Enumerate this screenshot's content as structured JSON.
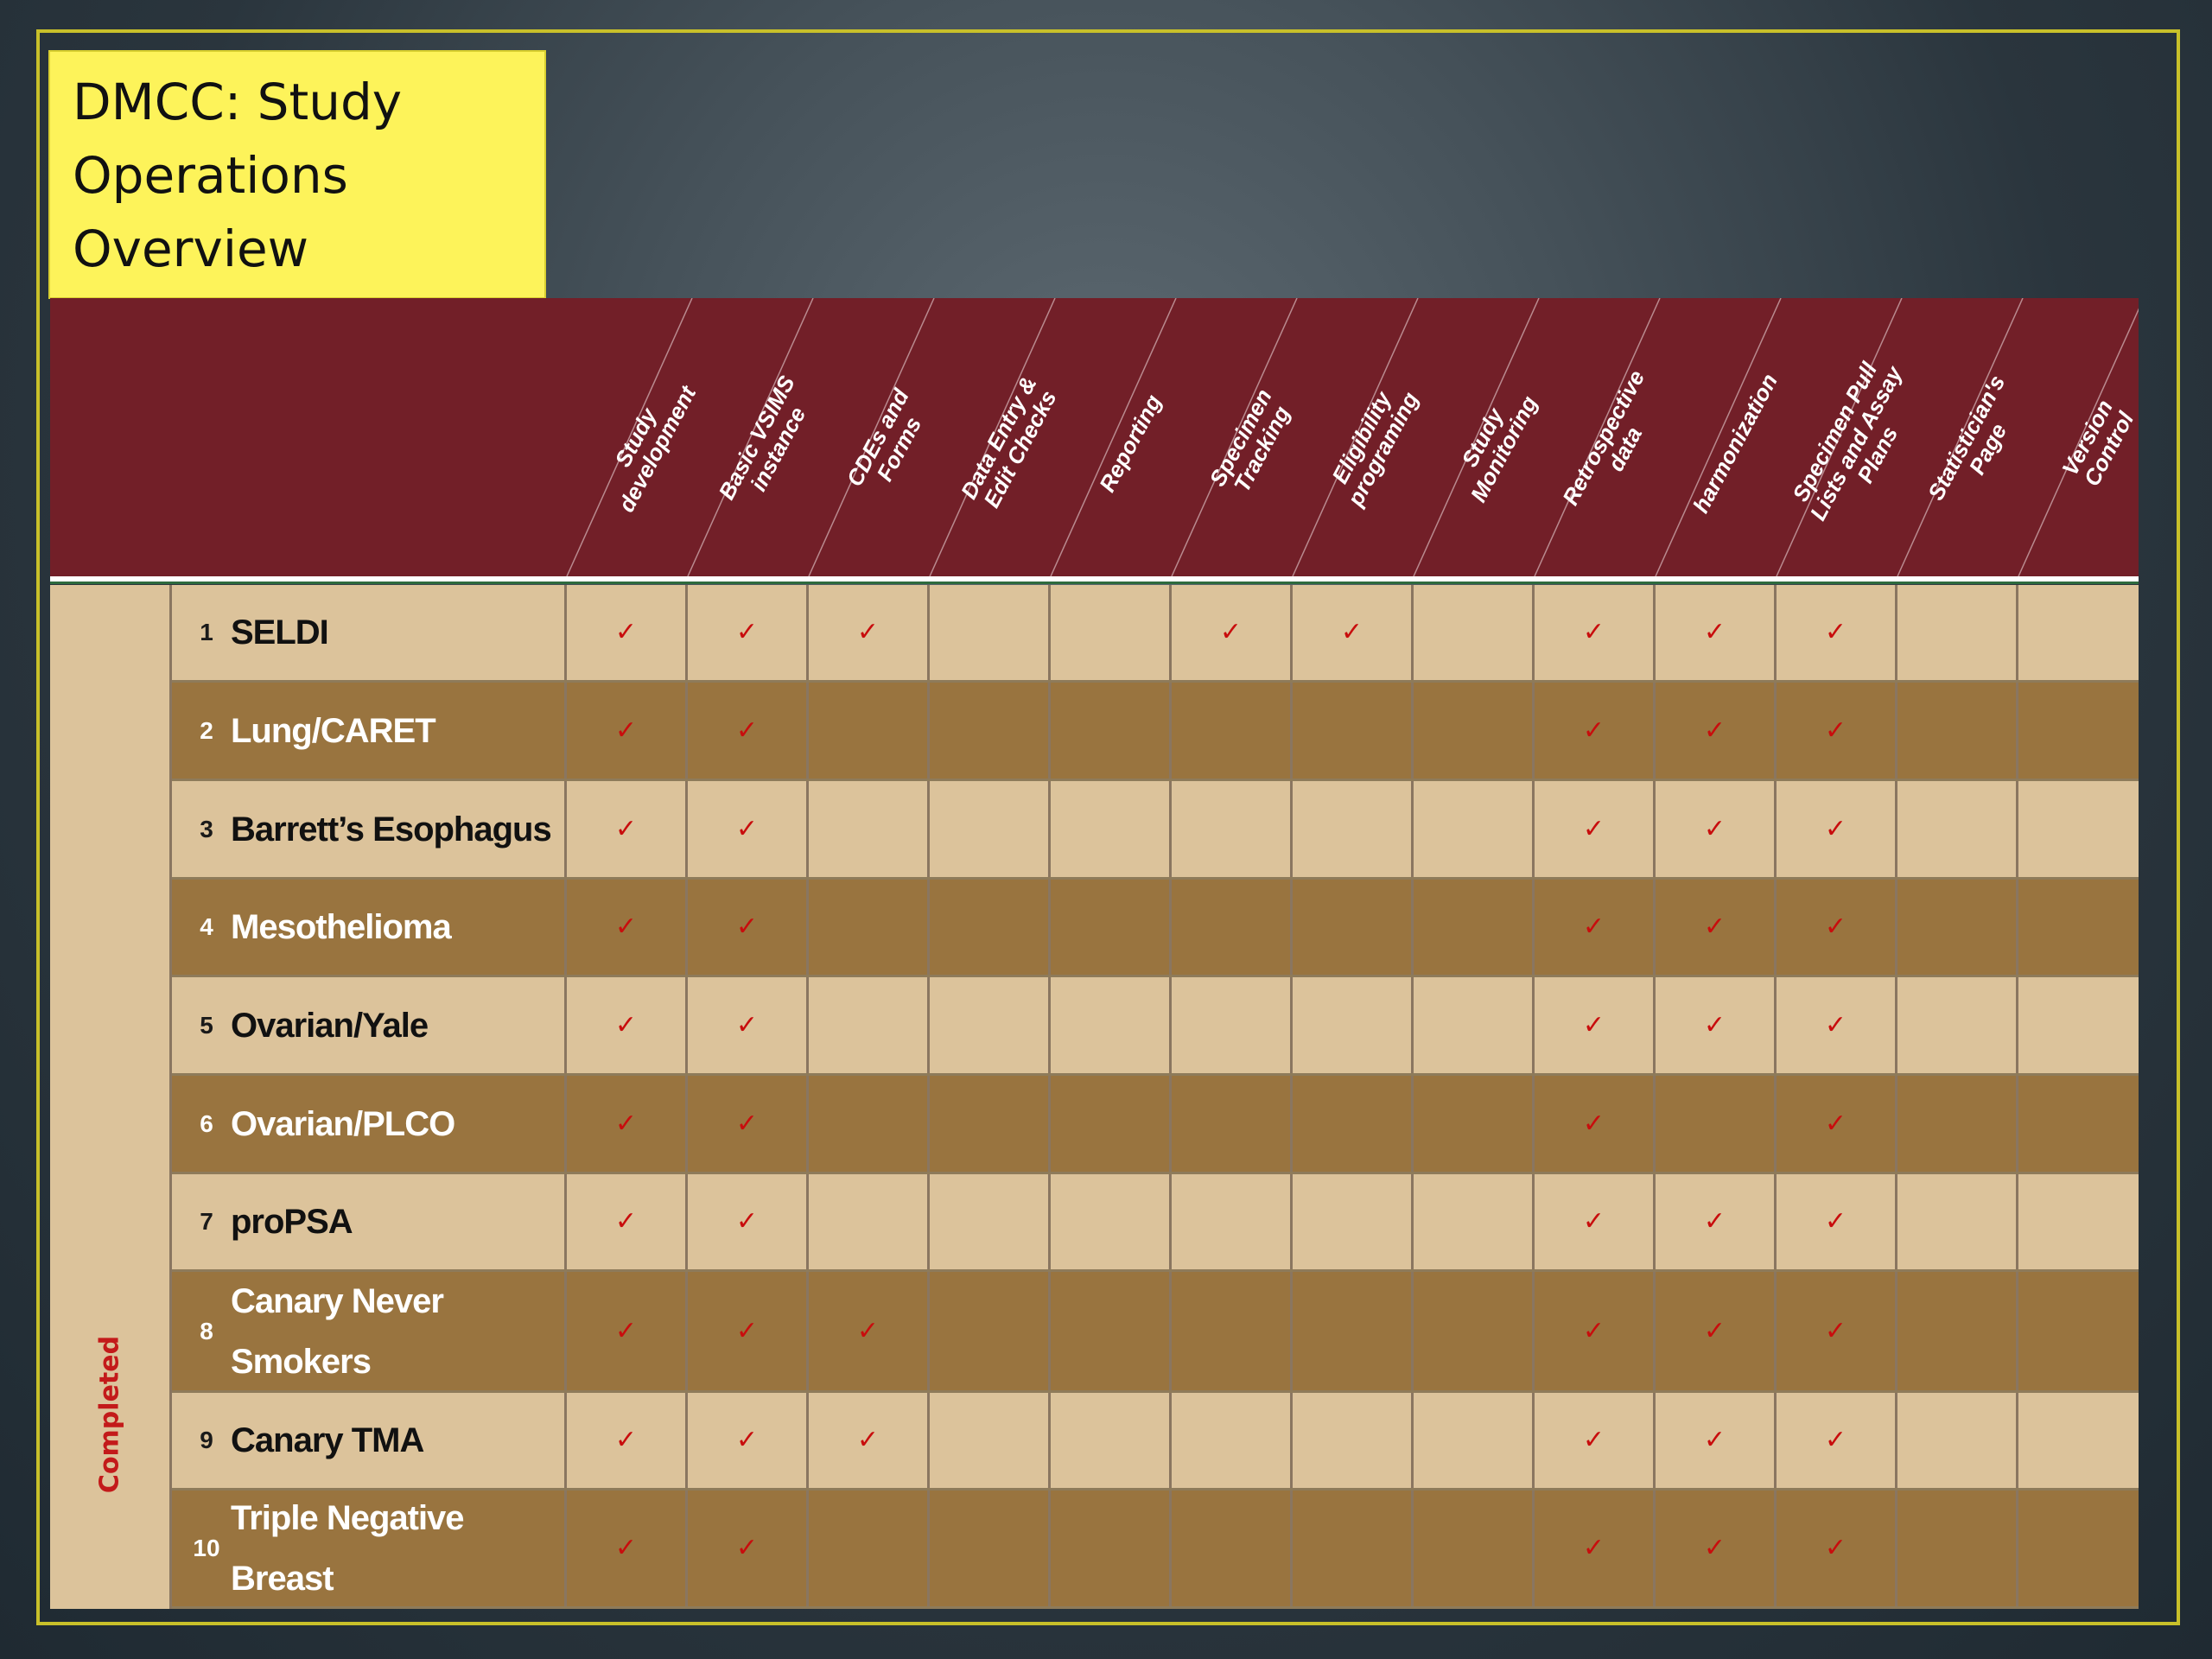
{
  "title": [
    "DMCC: Study",
    "Operations",
    "Overview"
  ],
  "columns": [
    [
      "Study",
      "development"
    ],
    [
      "Basic VSIMS",
      "instance"
    ],
    [
      "CDEs and",
      "Forms"
    ],
    [
      "Data Entry &",
      "Edit Checks"
    ],
    [
      "Reporting"
    ],
    [
      "Specimen",
      "Tracking"
    ],
    [
      "Eligibility",
      "programing"
    ],
    [
      "Study",
      "Monitoring"
    ],
    [
      "Retrospective",
      "data"
    ],
    [
      "harmonization"
    ],
    [
      "Specimen Pull",
      "Lists and Assay",
      "Plans"
    ],
    [
      "Statistician's",
      "Page"
    ],
    [
      "Version",
      "Control"
    ]
  ],
  "group_label": "Completed",
  "check_mark": "✓",
  "colors": {
    "header_band": "#721f28",
    "row_light": "#dcc39b",
    "row_dark": "#99743f",
    "check": "#c80d0d",
    "title_box": "#fdf35a",
    "frame": "#c8c02a",
    "group_label": "#c31a1a"
  },
  "rows": [
    {
      "num": "1",
      "name": [
        "SELDI"
      ],
      "checks": [
        1,
        1,
        1,
        0,
        0,
        1,
        1,
        0,
        1,
        1,
        1,
        0,
        0
      ]
    },
    {
      "num": "2",
      "name": [
        "Lung/CARET"
      ],
      "checks": [
        1,
        1,
        0,
        0,
        0,
        0,
        0,
        0,
        1,
        1,
        1,
        0,
        0
      ]
    },
    {
      "num": "3",
      "name": [
        "Barrett’s Esophagus"
      ],
      "checks": [
        1,
        1,
        0,
        0,
        0,
        0,
        0,
        0,
        1,
        1,
        1,
        0,
        0
      ]
    },
    {
      "num": "4",
      "name": [
        "Mesothelioma"
      ],
      "checks": [
        1,
        1,
        0,
        0,
        0,
        0,
        0,
        0,
        1,
        1,
        1,
        0,
        0
      ]
    },
    {
      "num": "5",
      "name": [
        "Ovarian/Yale"
      ],
      "checks": [
        1,
        1,
        0,
        0,
        0,
        0,
        0,
        0,
        1,
        1,
        1,
        0,
        0
      ]
    },
    {
      "num": "6",
      "name": [
        "Ovarian/PLCO"
      ],
      "checks": [
        1,
        1,
        0,
        0,
        0,
        0,
        0,
        0,
        1,
        0,
        1,
        0,
        0
      ]
    },
    {
      "num": "7",
      "name": [
        "proPSA"
      ],
      "checks": [
        1,
        1,
        0,
        0,
        0,
        0,
        0,
        0,
        1,
        1,
        1,
        0,
        0
      ]
    },
    {
      "num": "8",
      "name": [
        "Canary Never",
        "Smokers"
      ],
      "checks": [
        1,
        1,
        1,
        0,
        0,
        0,
        0,
        0,
        1,
        1,
        1,
        0,
        0
      ]
    },
    {
      "num": "9",
      "name": [
        "Canary TMA"
      ],
      "checks": [
        1,
        1,
        1,
        0,
        0,
        0,
        0,
        0,
        1,
        1,
        1,
        0,
        0
      ]
    },
    {
      "num": "10",
      "name": [
        "Triple Negative",
        "Breast"
      ],
      "checks": [
        1,
        1,
        0,
        0,
        0,
        0,
        0,
        0,
        1,
        1,
        1,
        0,
        0
      ]
    }
  ]
}
